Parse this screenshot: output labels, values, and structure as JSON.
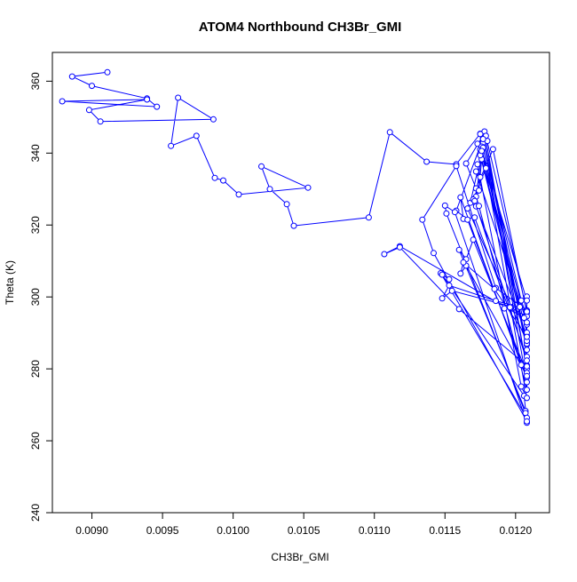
{
  "chart_data": {
    "type": "line",
    "title": "ATOM4 Northbound CH3Br_GMI",
    "xlabel": "CH3Br_GMI",
    "ylabel": "Theta (K)",
    "xlim": [
      0.00872,
      0.01224
    ],
    "ylim": [
      240,
      368
    ],
    "xticks": [
      "0.0090",
      "0.0095",
      "0.0100",
      "0.0105",
      "0.0110",
      "0.0115",
      "0.0120"
    ],
    "yticks": [
      "240",
      "260",
      "280",
      "300",
      "320",
      "340",
      "360"
    ],
    "grid": false,
    "legend": "none",
    "series_color": "#0000ff",
    "series": [
      {
        "x": [
          0.00911,
          0.00886,
          0.009,
          0.00939,
          0.00946,
          0.00879,
          0.00939,
          0.00898,
          0.00906,
          0.00986,
          0.00961,
          0.00956,
          0.00974,
          0.00987,
          0.00993,
          0.01004,
          0.01053,
          0.0102,
          0.01026,
          0.01038,
          0.01043,
          0.01096,
          0.01111,
          0.01137,
          0.01158,
          0.01175,
          0.01177,
          0.01165,
          0.01172,
          0.01184,
          0.01208,
          0.01208,
          0.01192,
          0.01196,
          0.01208,
          0.01204,
          0.01177,
          0.01173,
          0.01175,
          0.01208,
          0.01208,
          0.01172,
          0.01168,
          0.01178,
          0.01208,
          0.01208,
          0.01171,
          0.01163,
          0.01161,
          0.01204,
          0.01208,
          0.01166,
          0.01158,
          0.01177,
          0.01208,
          0.01208,
          0.01174,
          0.01172,
          0.01178,
          0.01208,
          0.01208,
          0.0117,
          0.01165,
          0.0116,
          0.01207,
          0.01208,
          0.01157,
          0.0115,
          0.01151,
          0.01207,
          0.01208,
          0.01147,
          0.01153,
          0.01148,
          0.01206,
          0.01208,
          0.01142,
          0.01134,
          0.01158,
          0.01186,
          0.01208,
          0.01206,
          0.01118,
          0.01107,
          0.01118,
          0.0116,
          0.01208,
          0.01208,
          0.01166,
          0.0117,
          0.01179,
          0.01208,
          0.01208,
          0.01171,
          0.01174,
          0.01176,
          0.01208,
          0.01208,
          0.01175,
          0.01177,
          0.01179,
          0.01208,
          0.01208,
          0.01172,
          0.01175,
          0.01173,
          0.01204,
          0.01208,
          0.01176,
          0.0118,
          0.01177,
          0.01208,
          0.01208,
          0.01165,
          0.01161,
          0.01163,
          0.01185,
          0.01208,
          0.01208,
          0.01177,
          0.01175,
          0.01176,
          0.01208,
          0.01208,
          0.01155,
          0.01148,
          0.01153,
          0.01186,
          0.01203,
          0.01208
        ],
        "y": [
          362.5,
          361.3,
          358.7,
          355.2,
          352.9,
          354.4,
          354.9,
          352.0,
          348.8,
          349.4,
          355.4,
          342.0,
          344.8,
          333.1,
          332.4,
          328.5,
          330.4,
          336.3,
          330.0,
          325.8,
          319.8,
          322.1,
          345.8,
          337.6,
          336.9,
          345.4,
          344.9,
          337.1,
          330.2,
          341.1,
          295.5,
          300.1,
          296.8,
          297.1,
          294.6,
          299.0,
          343.2,
          342.6,
          341.0,
          292.3,
          289.3,
          325.2,
          326.2,
          343.6,
          286.7,
          283.4,
          322.1,
          321.7,
          327.7,
          281.1,
          277.6,
          321.5,
          324.0,
          344.1,
          276.3,
          274.2,
          325.3,
          327.9,
          346.0,
          280.0,
          278.9,
          315.9,
          310.5,
          313.1,
          268.3,
          265.0,
          323.6,
          325.4,
          323.2,
          267.7,
          266.4,
          306.6,
          304.9,
          306.2,
          272.5,
          265.4,
          312.2,
          321.5,
          336.4,
          302.5,
          296.3,
          294.2,
          314.1,
          311.9,
          313.8,
          296.6,
          281.0,
          287.6,
          324.6,
          327.1,
          335.8,
          287.0,
          282.3,
          326.7,
          329.6,
          338.3,
          290.1,
          287.8,
          339.4,
          342.9,
          344.8,
          296.2,
          292.9,
          334.9,
          333.3,
          336.9,
          275.1,
          271.9,
          341.8,
          343.4,
          341.5,
          280.7,
          278.0,
          308.7,
          306.5,
          309.6,
          302.2,
          288.9,
          285.3,
          343.9,
          345.3,
          340.6,
          299.0,
          296.2,
          301.7,
          299.6,
          303.2,
          298.9,
          297.2,
          295.9
        ]
      }
    ]
  }
}
